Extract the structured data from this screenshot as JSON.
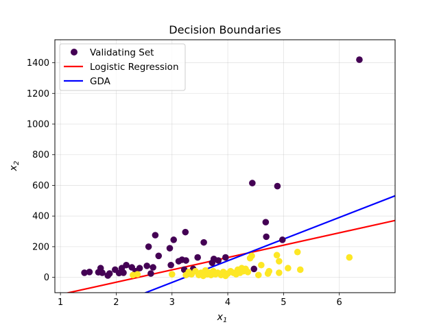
{
  "chart_data": {
    "type": "scatter",
    "title": "Decision Boundaries",
    "xlabel": "x",
    "xlabel_sub": "1",
    "ylabel": "x",
    "ylabel_sub": "2",
    "xlim": [
      0.9,
      7.0
    ],
    "ylim": [
      -100,
      1550
    ],
    "xticks": [
      1,
      2,
      3,
      4,
      5,
      6
    ],
    "yticks": [
      0,
      200,
      400,
      600,
      800,
      1000,
      1200,
      1400
    ],
    "grid": true,
    "legend_position": "top-left",
    "colors": {
      "class0": "#440154",
      "class1": "#fde725",
      "logistic": "#ff0000",
      "gda": "#0000ff"
    },
    "series": [
      {
        "name": "Validating Set",
        "kind": "scatter",
        "points": [
          {
            "x": 1.43,
            "y": 30,
            "c": 0
          },
          {
            "x": 1.52,
            "y": 35,
            "c": 0
          },
          {
            "x": 1.68,
            "y": 33,
            "c": 0
          },
          {
            "x": 1.72,
            "y": 60,
            "c": 0
          },
          {
            "x": 1.75,
            "y": 30,
            "c": 0
          },
          {
            "x": 1.85,
            "y": 12,
            "c": 0
          },
          {
            "x": 1.88,
            "y": 25,
            "c": 0
          },
          {
            "x": 1.98,
            "y": 50,
            "c": 0
          },
          {
            "x": 2.05,
            "y": 28,
            "c": 0
          },
          {
            "x": 2.1,
            "y": 60,
            "c": 0
          },
          {
            "x": 2.13,
            "y": 30,
            "c": 0
          },
          {
            "x": 2.18,
            "y": 80,
            "c": 0
          },
          {
            "x": 2.28,
            "y": 65,
            "c": 0
          },
          {
            "x": 2.35,
            "y": 40,
            "c": 0
          },
          {
            "x": 2.42,
            "y": 60,
            "c": 0
          },
          {
            "x": 2.55,
            "y": 75,
            "c": 0
          },
          {
            "x": 2.58,
            "y": 200,
            "c": 0
          },
          {
            "x": 2.62,
            "y": 25,
            "c": 0
          },
          {
            "x": 2.66,
            "y": 65,
            "c": 0
          },
          {
            "x": 2.7,
            "y": 275,
            "c": 0
          },
          {
            "x": 2.76,
            "y": 140,
            "c": 0
          },
          {
            "x": 2.96,
            "y": 190,
            "c": 0
          },
          {
            "x": 2.98,
            "y": 80,
            "c": 0
          },
          {
            "x": 3.03,
            "y": 245,
            "c": 0
          },
          {
            "x": 3.12,
            "y": 105,
            "c": 0
          },
          {
            "x": 3.18,
            "y": 115,
            "c": 0
          },
          {
            "x": 3.22,
            "y": 50,
            "c": 0
          },
          {
            "x": 3.24,
            "y": 295,
            "c": 0
          },
          {
            "x": 3.25,
            "y": 110,
            "c": 0
          },
          {
            "x": 3.38,
            "y": 55,
            "c": 0
          },
          {
            "x": 3.46,
            "y": 130,
            "c": 0
          },
          {
            "x": 3.57,
            "y": 228,
            "c": 0
          },
          {
            "x": 3.72,
            "y": 95,
            "c": 0
          },
          {
            "x": 3.75,
            "y": 120,
            "c": 0
          },
          {
            "x": 3.83,
            "y": 110,
            "c": 0
          },
          {
            "x": 3.96,
            "y": 130,
            "c": 0
          },
          {
            "x": 4.44,
            "y": 615,
            "c": 0
          },
          {
            "x": 4.47,
            "y": 55,
            "c": 0
          },
          {
            "x": 4.68,
            "y": 360,
            "c": 0
          },
          {
            "x": 4.69,
            "y": 265,
            "c": 0
          },
          {
            "x": 4.89,
            "y": 595,
            "c": 0
          },
          {
            "x": 4.98,
            "y": 245,
            "c": 0
          },
          {
            "x": 6.36,
            "y": 1420,
            "c": 0
          },
          {
            "x": 2.3,
            "y": 15,
            "c": 1
          },
          {
            "x": 2.38,
            "y": 20,
            "c": 1
          },
          {
            "x": 3.0,
            "y": 20,
            "c": 1
          },
          {
            "x": 3.25,
            "y": 15,
            "c": 1
          },
          {
            "x": 3.3,
            "y": 35,
            "c": 1
          },
          {
            "x": 3.35,
            "y": 20,
            "c": 1
          },
          {
            "x": 3.42,
            "y": 40,
            "c": 1
          },
          {
            "x": 3.48,
            "y": 15,
            "c": 1
          },
          {
            "x": 3.52,
            "y": 30,
            "c": 1
          },
          {
            "x": 3.56,
            "y": 10,
            "c": 1
          },
          {
            "x": 3.6,
            "y": 45,
            "c": 1
          },
          {
            "x": 3.63,
            "y": 20,
            "c": 1
          },
          {
            "x": 3.67,
            "y": 30,
            "c": 1
          },
          {
            "x": 3.7,
            "y": 15,
            "c": 1
          },
          {
            "x": 3.74,
            "y": 40,
            "c": 1
          },
          {
            "x": 3.78,
            "y": 20,
            "c": 1
          },
          {
            "x": 3.82,
            "y": 30,
            "c": 1
          },
          {
            "x": 3.88,
            "y": 15,
            "c": 1
          },
          {
            "x": 3.92,
            "y": 35,
            "c": 1
          },
          {
            "x": 3.96,
            "y": 10,
            "c": 1
          },
          {
            "x": 4.0,
            "y": 25,
            "c": 1
          },
          {
            "x": 4.05,
            "y": 40,
            "c": 1
          },
          {
            "x": 4.1,
            "y": 30,
            "c": 1
          },
          {
            "x": 4.15,
            "y": 20,
            "c": 1
          },
          {
            "x": 4.18,
            "y": 50,
            "c": 1
          },
          {
            "x": 4.22,
            "y": 30,
            "c": 1
          },
          {
            "x": 4.25,
            "y": 60,
            "c": 1
          },
          {
            "x": 4.28,
            "y": 40,
            "c": 1
          },
          {
            "x": 4.32,
            "y": 55,
            "c": 1
          },
          {
            "x": 4.36,
            "y": 35,
            "c": 1
          },
          {
            "x": 4.4,
            "y": 125,
            "c": 1
          },
          {
            "x": 4.43,
            "y": 140,
            "c": 1
          },
          {
            "x": 4.55,
            "y": 15,
            "c": 1
          },
          {
            "x": 4.6,
            "y": 80,
            "c": 1
          },
          {
            "x": 4.72,
            "y": 25,
            "c": 1
          },
          {
            "x": 4.74,
            "y": 40,
            "c": 1
          },
          {
            "x": 4.88,
            "y": 145,
            "c": 1
          },
          {
            "x": 4.92,
            "y": 105,
            "c": 1
          },
          {
            "x": 4.92,
            "y": 30,
            "c": 1
          },
          {
            "x": 5.08,
            "y": 60,
            "c": 1
          },
          {
            "x": 5.25,
            "y": 165,
            "c": 1
          },
          {
            "x": 5.3,
            "y": 50,
            "c": 1
          },
          {
            "x": 6.18,
            "y": 130,
            "c": 1
          }
        ]
      },
      {
        "name": "Logistic Regression",
        "kind": "line",
        "x": [
          0.9,
          7.0
        ],
        "y": [
          -120,
          371
        ]
      },
      {
        "name": "GDA",
        "kind": "line",
        "x": [
          0.9,
          7.0
        ],
        "y": [
          -330,
          532
        ]
      }
    ]
  }
}
